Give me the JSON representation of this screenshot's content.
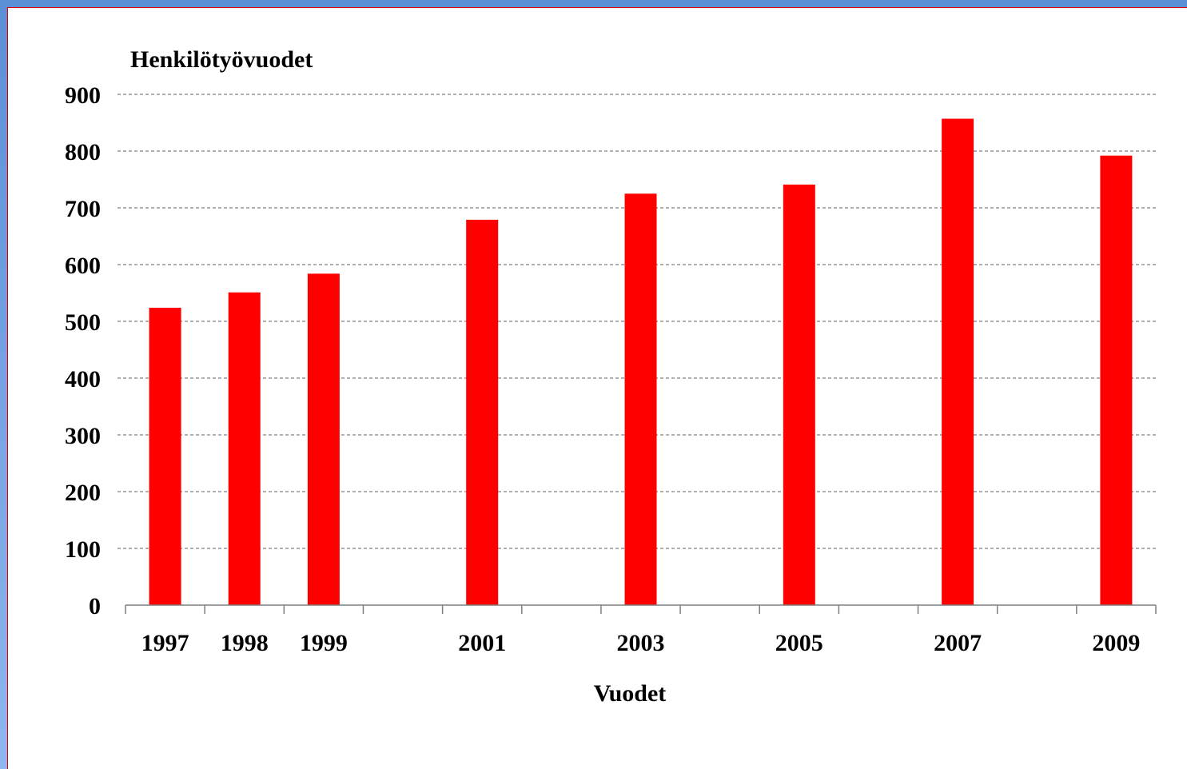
{
  "chart_data": {
    "type": "bar",
    "title": "",
    "ylabel": "Henkilötyövuodet",
    "xlabel": "Vuodet",
    "x_tick_labels": [
      "1997",
      "1998",
      "1999",
      "2001",
      "2003",
      "2005",
      "2007",
      "2009"
    ],
    "y_tick_labels": [
      "0",
      "100",
      "200",
      "300",
      "400",
      "500",
      "600",
      "700",
      "800",
      "900"
    ],
    "x_slots": [
      "1997",
      "1998",
      "1999",
      "2000",
      "2001",
      "2002",
      "2003",
      "2004",
      "2005",
      "2006",
      "2007",
      "2008",
      "2009"
    ],
    "categories": [
      "1997",
      "1998",
      "1999",
      "2001",
      "2003",
      "2005",
      "2007",
      "2009"
    ],
    "values": [
      524,
      551,
      584,
      679,
      725,
      741,
      857,
      792
    ],
    "ylim": [
      0,
      900
    ],
    "yticks": [
      0,
      100,
      200,
      300,
      400,
      500,
      600,
      700,
      800,
      900
    ],
    "grid": true,
    "grid_style": "dashed",
    "legend": "none",
    "bar_color": "#ff0000"
  },
  "colors": {
    "frame_blue": "#5b8fd6",
    "panel_border": "#e00000",
    "gridline": "#7f7f7f",
    "axis": "#7f7f7f"
  }
}
